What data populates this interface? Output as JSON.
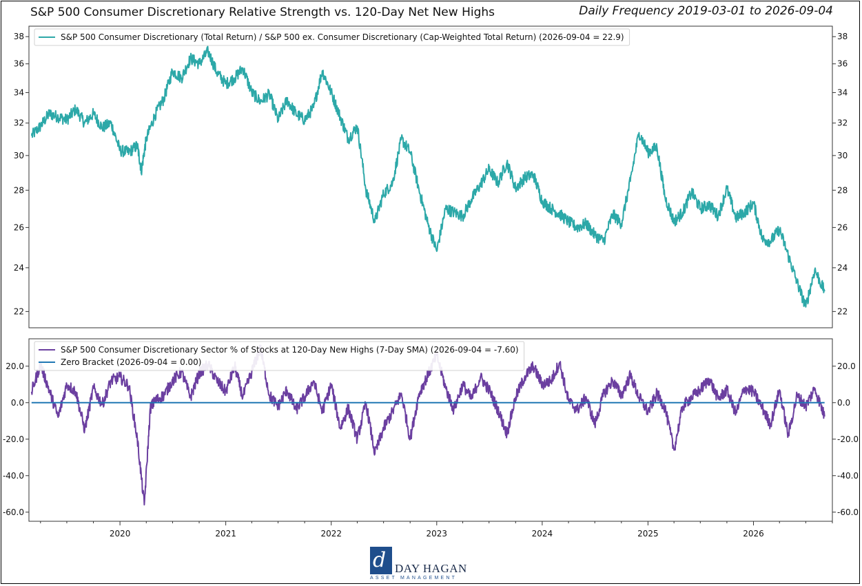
{
  "header": {
    "title": "S&P 500 Consumer Discretionary Relative Strength vs. 120-Day Net New Highs",
    "subtitle": "Daily Frequency 2019-03-01 to 2026-09-04"
  },
  "logo": {
    "name": "DAY HAGAN",
    "tagline": "ASSET MANAGEMENT",
    "mark": "d"
  },
  "chart_data": [
    {
      "type": "line",
      "yscale": "log",
      "ylim": [
        21.3,
        38.8
      ],
      "xlim": [
        "2019-02-20",
        "2026-10-01"
      ],
      "yticks": [
        22,
        24,
        26,
        28,
        30,
        32,
        34,
        36,
        38
      ],
      "grid": false,
      "legend_position": "top-left",
      "series": [
        {
          "name": "S&P 500 Consumer Discretionary (Total Return) / S&P 500 ex. Consumer Discretionary (Cap-Weighted Total Return) (2026-09-04 = 22.9)",
          "color": "#2ca8a8",
          "points": [
            [
              "2019-03-01",
              31.2
            ],
            [
              "2019-04-01",
              31.8
            ],
            [
              "2019-05-01",
              32.6
            ],
            [
              "2019-06-01",
              32.4
            ],
            [
              "2019-07-01",
              32.2
            ],
            [
              "2019-08-01",
              32.9
            ],
            [
              "2019-09-01",
              32.0
            ],
            [
              "2019-10-01",
              32.6
            ],
            [
              "2019-11-01",
              31.7
            ],
            [
              "2019-12-01",
              32.0
            ],
            [
              "2020-01-01",
              30.3
            ],
            [
              "2020-02-01",
              30.2
            ],
            [
              "2020-03-01",
              30.6
            ],
            [
              "2020-03-15",
              29.1
            ],
            [
              "2020-04-01",
              31.0
            ],
            [
              "2020-05-01",
              32.5
            ],
            [
              "2020-06-01",
              33.6
            ],
            [
              "2020-07-01",
              35.5
            ],
            [
              "2020-08-01",
              35.0
            ],
            [
              "2020-09-01",
              36.4
            ],
            [
              "2020-10-01",
              36.0
            ],
            [
              "2020-11-01",
              36.9
            ],
            [
              "2020-12-01",
              35.4
            ],
            [
              "2021-01-01",
              34.6
            ],
            [
              "2021-02-01",
              35.0
            ],
            [
              "2021-03-01",
              35.7
            ],
            [
              "2021-04-01",
              34.0
            ],
            [
              "2021-05-01",
              33.4
            ],
            [
              "2021-06-01",
              33.9
            ],
            [
              "2021-07-01",
              32.2
            ],
            [
              "2021-08-01",
              33.5
            ],
            [
              "2021-09-01",
              32.6
            ],
            [
              "2021-10-01",
              32.2
            ],
            [
              "2021-11-01",
              33.0
            ],
            [
              "2021-12-01",
              35.5
            ],
            [
              "2022-01-01",
              34.0
            ],
            [
              "2022-02-01",
              32.4
            ],
            [
              "2022-03-01",
              31.0
            ],
            [
              "2022-04-01",
              31.8
            ],
            [
              "2022-05-01",
              28.0
            ],
            [
              "2022-06-01",
              26.3
            ],
            [
              "2022-07-01",
              27.8
            ],
            [
              "2022-08-01",
              28.4
            ],
            [
              "2022-09-01",
              31.0
            ],
            [
              "2022-10-01",
              30.2
            ],
            [
              "2022-11-01",
              28.0
            ],
            [
              "2022-12-01",
              26.2
            ],
            [
              "2023-01-01",
              24.8
            ],
            [
              "2023-02-01",
              27.0
            ],
            [
              "2023-03-01",
              26.8
            ],
            [
              "2023-04-01",
              26.6
            ],
            [
              "2023-05-01",
              27.5
            ],
            [
              "2023-06-01",
              28.3
            ],
            [
              "2023-07-01",
              29.2
            ],
            [
              "2023-08-01",
              28.4
            ],
            [
              "2023-09-01",
              29.6
            ],
            [
              "2023-10-01",
              28.1
            ],
            [
              "2023-11-01",
              28.7
            ],
            [
              "2023-12-01",
              28.9
            ],
            [
              "2024-01-01",
              27.4
            ],
            [
              "2024-02-01",
              27.0
            ],
            [
              "2024-03-01",
              26.7
            ],
            [
              "2024-04-01",
              26.3
            ],
            [
              "2024-05-01",
              26.0
            ],
            [
              "2024-06-01",
              26.2
            ],
            [
              "2024-07-01",
              25.6
            ],
            [
              "2024-08-01",
              25.3
            ],
            [
              "2024-09-01",
              26.7
            ],
            [
              "2024-10-01",
              26.2
            ],
            [
              "2024-11-01",
              28.5
            ],
            [
              "2024-12-01",
              31.4
            ],
            [
              "2025-01-01",
              30.2
            ],
            [
              "2025-02-01",
              30.5
            ],
            [
              "2025-03-01",
              27.6
            ],
            [
              "2025-04-01",
              26.3
            ],
            [
              "2025-05-01",
              26.8
            ],
            [
              "2025-06-01",
              27.9
            ],
            [
              "2025-07-01",
              27.0
            ],
            [
              "2025-08-01",
              27.2
            ],
            [
              "2025-09-01",
              26.6
            ],
            [
              "2025-10-01",
              28.1
            ],
            [
              "2025-11-01",
              26.5
            ],
            [
              "2025-12-01",
              26.8
            ],
            [
              "2026-01-01",
              27.3
            ],
            [
              "2026-02-01",
              25.4
            ],
            [
              "2026-03-01",
              25.3
            ],
            [
              "2026-04-01",
              25.9
            ],
            [
              "2026-05-01",
              24.6
            ],
            [
              "2026-06-01",
              23.3
            ],
            [
              "2026-07-01",
              22.2
            ],
            [
              "2026-08-01",
              23.9
            ],
            [
              "2026-09-04",
              22.9
            ]
          ]
        }
      ]
    },
    {
      "type": "line",
      "ylim": [
        -65,
        35
      ],
      "xlim": [
        "2019-02-20",
        "2026-10-01"
      ],
      "yticks": [
        20,
        0,
        -20,
        -40,
        -60
      ],
      "ytick_labels": [
        "20.0",
        "0.0",
        "-20.0",
        "-40.0",
        "-60.0"
      ],
      "xticks": [
        "2020-01-01",
        "2021-01-01",
        "2022-01-01",
        "2023-01-01",
        "2024-01-01",
        "2025-01-01",
        "2026-01-01"
      ],
      "xtick_labels": [
        "2020",
        "2021",
        "2022",
        "2023",
        "2024",
        "2025",
        "2026"
      ],
      "grid": false,
      "legend_position": "top-left",
      "series": [
        {
          "name": "S&P 500 Consumer Discretionary Sector % of Stocks at 120-Day New Highs (7-Day SMA) (2026-09-04 = -7.60)",
          "color": "#6b3fa0",
          "points": [
            [
              "2019-03-01",
              6
            ],
            [
              "2019-04-01",
              21
            ],
            [
              "2019-05-01",
              7
            ],
            [
              "2019-06-01",
              -8
            ],
            [
              "2019-07-01",
              10
            ],
            [
              "2019-08-01",
              6
            ],
            [
              "2019-09-01",
              -15
            ],
            [
              "2019-10-01",
              8
            ],
            [
              "2019-11-01",
              -1
            ],
            [
              "2019-12-01",
              12
            ],
            [
              "2020-01-01",
              14
            ],
            [
              "2020-02-01",
              9
            ],
            [
              "2020-03-01",
              -20
            ],
            [
              "2020-03-25",
              -56
            ],
            [
              "2020-04-15",
              -3
            ],
            [
              "2020-05-01",
              1
            ],
            [
              "2020-06-01",
              4
            ],
            [
              "2020-07-01",
              12
            ],
            [
              "2020-08-01",
              17
            ],
            [
              "2020-09-01",
              3
            ],
            [
              "2020-10-01",
              16
            ],
            [
              "2020-11-01",
              21
            ],
            [
              "2020-12-01",
              12
            ],
            [
              "2021-01-01",
              6
            ],
            [
              "2021-02-01",
              20
            ],
            [
              "2021-03-01",
              3
            ],
            [
              "2021-04-01",
              17
            ],
            [
              "2021-05-01",
              30
            ],
            [
              "2021-06-01",
              4
            ],
            [
              "2021-07-01",
              -2
            ],
            [
              "2021-08-01",
              7
            ],
            [
              "2021-09-01",
              -4
            ],
            [
              "2021-10-01",
              3
            ],
            [
              "2021-11-01",
              12
            ],
            [
              "2021-12-01",
              -5
            ],
            [
              "2022-01-01",
              10
            ],
            [
              "2022-02-01",
              -14
            ],
            [
              "2022-03-01",
              -3
            ],
            [
              "2022-04-01",
              -20
            ],
            [
              "2022-05-01",
              0
            ],
            [
              "2022-06-01",
              -28
            ],
            [
              "2022-07-01",
              -14
            ],
            [
              "2022-08-01",
              -5
            ],
            [
              "2022-09-01",
              5
            ],
            [
              "2022-10-01",
              -20
            ],
            [
              "2022-11-01",
              5
            ],
            [
              "2022-12-01",
              15
            ],
            [
              "2023-01-01",
              26
            ],
            [
              "2023-02-01",
              8
            ],
            [
              "2023-03-01",
              -4
            ],
            [
              "2023-04-01",
              10
            ],
            [
              "2023-05-01",
              2
            ],
            [
              "2023-06-01",
              14
            ],
            [
              "2023-07-01",
              7
            ],
            [
              "2023-08-01",
              -4
            ],
            [
              "2023-09-01",
              -17
            ],
            [
              "2023-10-01",
              3
            ],
            [
              "2023-11-01",
              14
            ],
            [
              "2023-12-01",
              20
            ],
            [
              "2024-01-01",
              10
            ],
            [
              "2024-02-01",
              12
            ],
            [
              "2024-03-01",
              22
            ],
            [
              "2024-04-01",
              1
            ],
            [
              "2024-05-01",
              -4
            ],
            [
              "2024-06-01",
              3
            ],
            [
              "2024-07-01",
              -12
            ],
            [
              "2024-08-01",
              5
            ],
            [
              "2024-09-01",
              12
            ],
            [
              "2024-10-01",
              4
            ],
            [
              "2024-11-01",
              15
            ],
            [
              "2024-12-01",
              3
            ],
            [
              "2025-01-01",
              -5
            ],
            [
              "2025-02-01",
              5
            ],
            [
              "2025-03-01",
              -3
            ],
            [
              "2025-04-01",
              -26
            ],
            [
              "2025-05-01",
              -2
            ],
            [
              "2025-06-01",
              3
            ],
            [
              "2025-07-01",
              7
            ],
            [
              "2025-08-01",
              13
            ],
            [
              "2025-09-01",
              2
            ],
            [
              "2025-10-01",
              7
            ],
            [
              "2025-11-01",
              -6
            ],
            [
              "2025-12-01",
              8
            ],
            [
              "2026-01-01",
              6
            ],
            [
              "2026-02-01",
              -3
            ],
            [
              "2026-03-01",
              -12
            ],
            [
              "2026-04-01",
              7
            ],
            [
              "2026-05-01",
              -18
            ],
            [
              "2026-06-01",
              4
            ],
            [
              "2026-07-01",
              -2
            ],
            [
              "2026-08-01",
              8
            ],
            [
              "2026-09-04",
              -7.6
            ]
          ]
        },
        {
          "name": "Zero Bracket (2026-09-04 = 0.00)",
          "color": "#1f77b4",
          "points": [
            [
              "2019-03-01",
              0
            ],
            [
              "2026-09-04",
              0
            ]
          ]
        }
      ]
    }
  ]
}
